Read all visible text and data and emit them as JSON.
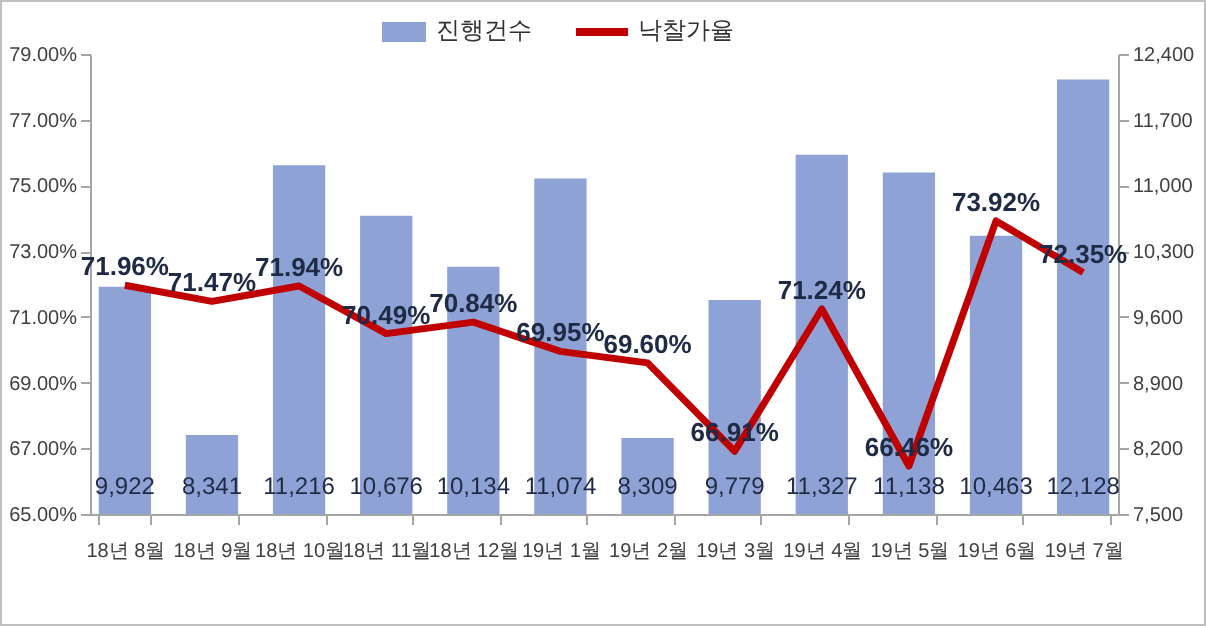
{
  "chart_data": {
    "type": "bar",
    "categories": [
      "18년 8월",
      "18년 9월",
      "18년 10월",
      "18년 11월",
      "18년 12월",
      "19년 1월",
      "19년 2월",
      "19년 3월",
      "19년 4월",
      "19년 5월",
      "19년 6월",
      "19년 7월"
    ],
    "series": [
      {
        "name": "진행건수",
        "axis": "y2",
        "color": "#8ea2d6",
        "values": [
          9922,
          8341,
          11216,
          10676,
          10134,
          11074,
          8309,
          9779,
          11327,
          11138,
          10463,
          12128
        ],
        "value_labels": [
          "9,922",
          "8,341",
          "11,216",
          "10,676",
          "10,134",
          "11,074",
          "8,309",
          "9,779",
          "11,327",
          "11,138",
          "10,463",
          "12,128"
        ]
      },
      {
        "name": "낙찰가율",
        "type": "line",
        "color": "#c00000",
        "values": [
          71.96,
          71.47,
          71.94,
          70.49,
          70.84,
          69.95,
          69.6,
          66.91,
          71.24,
          66.46,
          73.92,
          72.35
        ],
        "value_labels": [
          "71.96%",
          "71.47%",
          "71.94%",
          "70.49%",
          "70.84%",
          "69.95%",
          "69.60%",
          "66.91%",
          "71.24%",
          "66.46%",
          "73.92%",
          "72.35%"
        ]
      }
    ],
    "ylim": [
      65,
      79
    ],
    "yticks": [
      {
        "value": 65,
        "label": "65.00%"
      },
      {
        "value": 67,
        "label": "67.00%"
      },
      {
        "value": 69,
        "label": "69.00%"
      },
      {
        "value": 71,
        "label": "71.00%"
      },
      {
        "value": 73,
        "label": "73.00%"
      },
      {
        "value": 75,
        "label": "75.00%"
      },
      {
        "value": 77,
        "label": "77.00%"
      },
      {
        "value": 79,
        "label": "79.00%"
      }
    ],
    "y2lim": [
      7500,
      12400
    ],
    "y2ticks": [
      {
        "value": 7500,
        "label": "7,500"
      },
      {
        "value": 8200,
        "label": "8,200"
      },
      {
        "value": 8900,
        "label": "8,900"
      },
      {
        "value": 9600,
        "label": "9,600"
      },
      {
        "value": 10300,
        "label": "10,300"
      },
      {
        "value": 11000,
        "label": "11,000"
      },
      {
        "value": 11700,
        "label": "11,700"
      },
      {
        "value": 12400,
        "label": "12,400"
      }
    ],
    "grid": false,
    "legend": "top"
  }
}
